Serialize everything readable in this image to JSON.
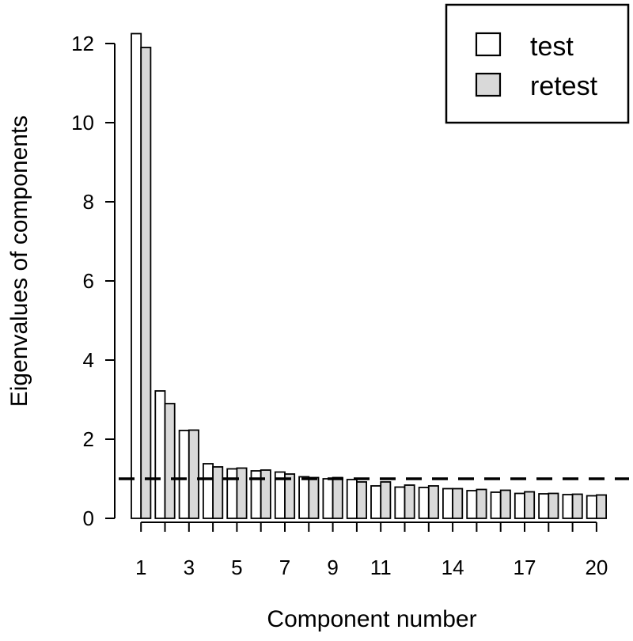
{
  "chart_data": {
    "type": "bar",
    "xlabel": "Component number",
    "ylabel": "Eigenvalues of components",
    "ylim": [
      0,
      12.2
    ],
    "yticks": [
      0,
      2,
      4,
      6,
      8,
      10,
      12
    ],
    "x_tick_labels_shown": [
      "1",
      "3",
      "5",
      "7",
      "9",
      "11",
      "14",
      "17",
      "20"
    ],
    "categories": [
      "1",
      "2",
      "3",
      "4",
      "5",
      "6",
      "7",
      "8",
      "9",
      "10",
      "11",
      "12",
      "13",
      "14",
      "15",
      "16",
      "17",
      "18",
      "19",
      "20"
    ],
    "series": [
      {
        "name": "test",
        "color": "#ffffff",
        "values": [
          12.25,
          3.22,
          2.22,
          1.38,
          1.25,
          1.2,
          1.17,
          1.05,
          1.0,
          0.98,
          0.82,
          0.79,
          0.78,
          0.75,
          0.7,
          0.66,
          0.63,
          0.62,
          0.6,
          0.57
        ]
      },
      {
        "name": "retest",
        "color": "#d9d9d9",
        "values": [
          11.9,
          2.9,
          2.23,
          1.3,
          1.27,
          1.22,
          1.12,
          1.03,
          1.03,
          0.92,
          0.92,
          0.84,
          0.82,
          0.75,
          0.73,
          0.71,
          0.67,
          0.63,
          0.61,
          0.59
        ]
      }
    ],
    "reference_line": {
      "y": 1,
      "style": "dashed"
    },
    "legend": {
      "position": "top-right",
      "entries": [
        "test",
        "retest"
      ]
    },
    "grid": false
  }
}
